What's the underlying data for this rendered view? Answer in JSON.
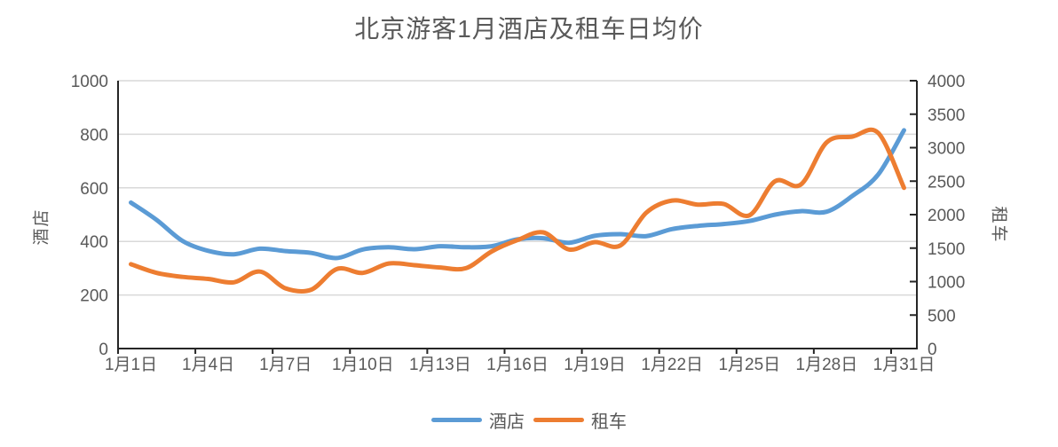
{
  "title": "北京游客1月酒店及租车日均价",
  "colors": {
    "hotel_line": "#5B9BD5",
    "car_line": "#ED7D31",
    "gridline": "#D9D9D9",
    "axis_line": "#262626",
    "label_text": "#595959"
  },
  "chart_data": {
    "type": "line",
    "smooth": true,
    "title": "北京游客1月酒店及租车日均价",
    "x": [
      1,
      2,
      3,
      4,
      5,
      6,
      7,
      8,
      9,
      10,
      11,
      12,
      13,
      14,
      15,
      16,
      17,
      18,
      19,
      20,
      21,
      22,
      23,
      24,
      25,
      26,
      27,
      28,
      29,
      30,
      31
    ],
    "x_tick_labels": [
      "1月1日",
      "1月4日",
      "1月7日",
      "1月10日",
      "1月13日",
      "1月16日",
      "1月19日",
      "1月22日",
      "1月25日",
      "1月28日",
      "1月31日"
    ],
    "x_tick_days": [
      1,
      4,
      7,
      10,
      13,
      16,
      19,
      22,
      25,
      28,
      31
    ],
    "series": [
      {
        "name": "酒店",
        "axis": "left",
        "color": "#5B9BD5",
        "values": [
          545,
          480,
          402,
          365,
          352,
          373,
          364,
          357,
          338,
          370,
          378,
          371,
          382,
          378,
          382,
          408,
          412,
          395,
          421,
          427,
          420,
          446,
          458,
          465,
          476,
          500,
          513,
          511,
          570,
          650,
          815
        ]
      },
      {
        "name": "租车",
        "axis": "right",
        "color": "#ED7D31",
        "values": [
          1260,
          1130,
          1070,
          1040,
          990,
          1150,
          900,
          880,
          1190,
          1130,
          1270,
          1245,
          1210,
          1200,
          1450,
          1620,
          1735,
          1480,
          1590,
          1540,
          2030,
          2210,
          2150,
          2160,
          1990,
          2500,
          2450,
          3080,
          3165,
          3220,
          2400
        ]
      }
    ],
    "left_axis": {
      "title": "酒店",
      "min": 0,
      "max": 1000,
      "step": 200,
      "tick_labels": [
        "0",
        "200",
        "400",
        "600",
        "800",
        "1000"
      ]
    },
    "right_axis": {
      "title": "租车",
      "min": 0,
      "max": 4000,
      "step": 500,
      "tick_labels": [
        "0",
        "500",
        "1000",
        "1500",
        "2000",
        "2500",
        "3000",
        "3500",
        "4000"
      ]
    },
    "legend": {
      "position": "bottom",
      "entries": [
        "酒店",
        "租车"
      ]
    },
    "grid": "horizontal"
  }
}
